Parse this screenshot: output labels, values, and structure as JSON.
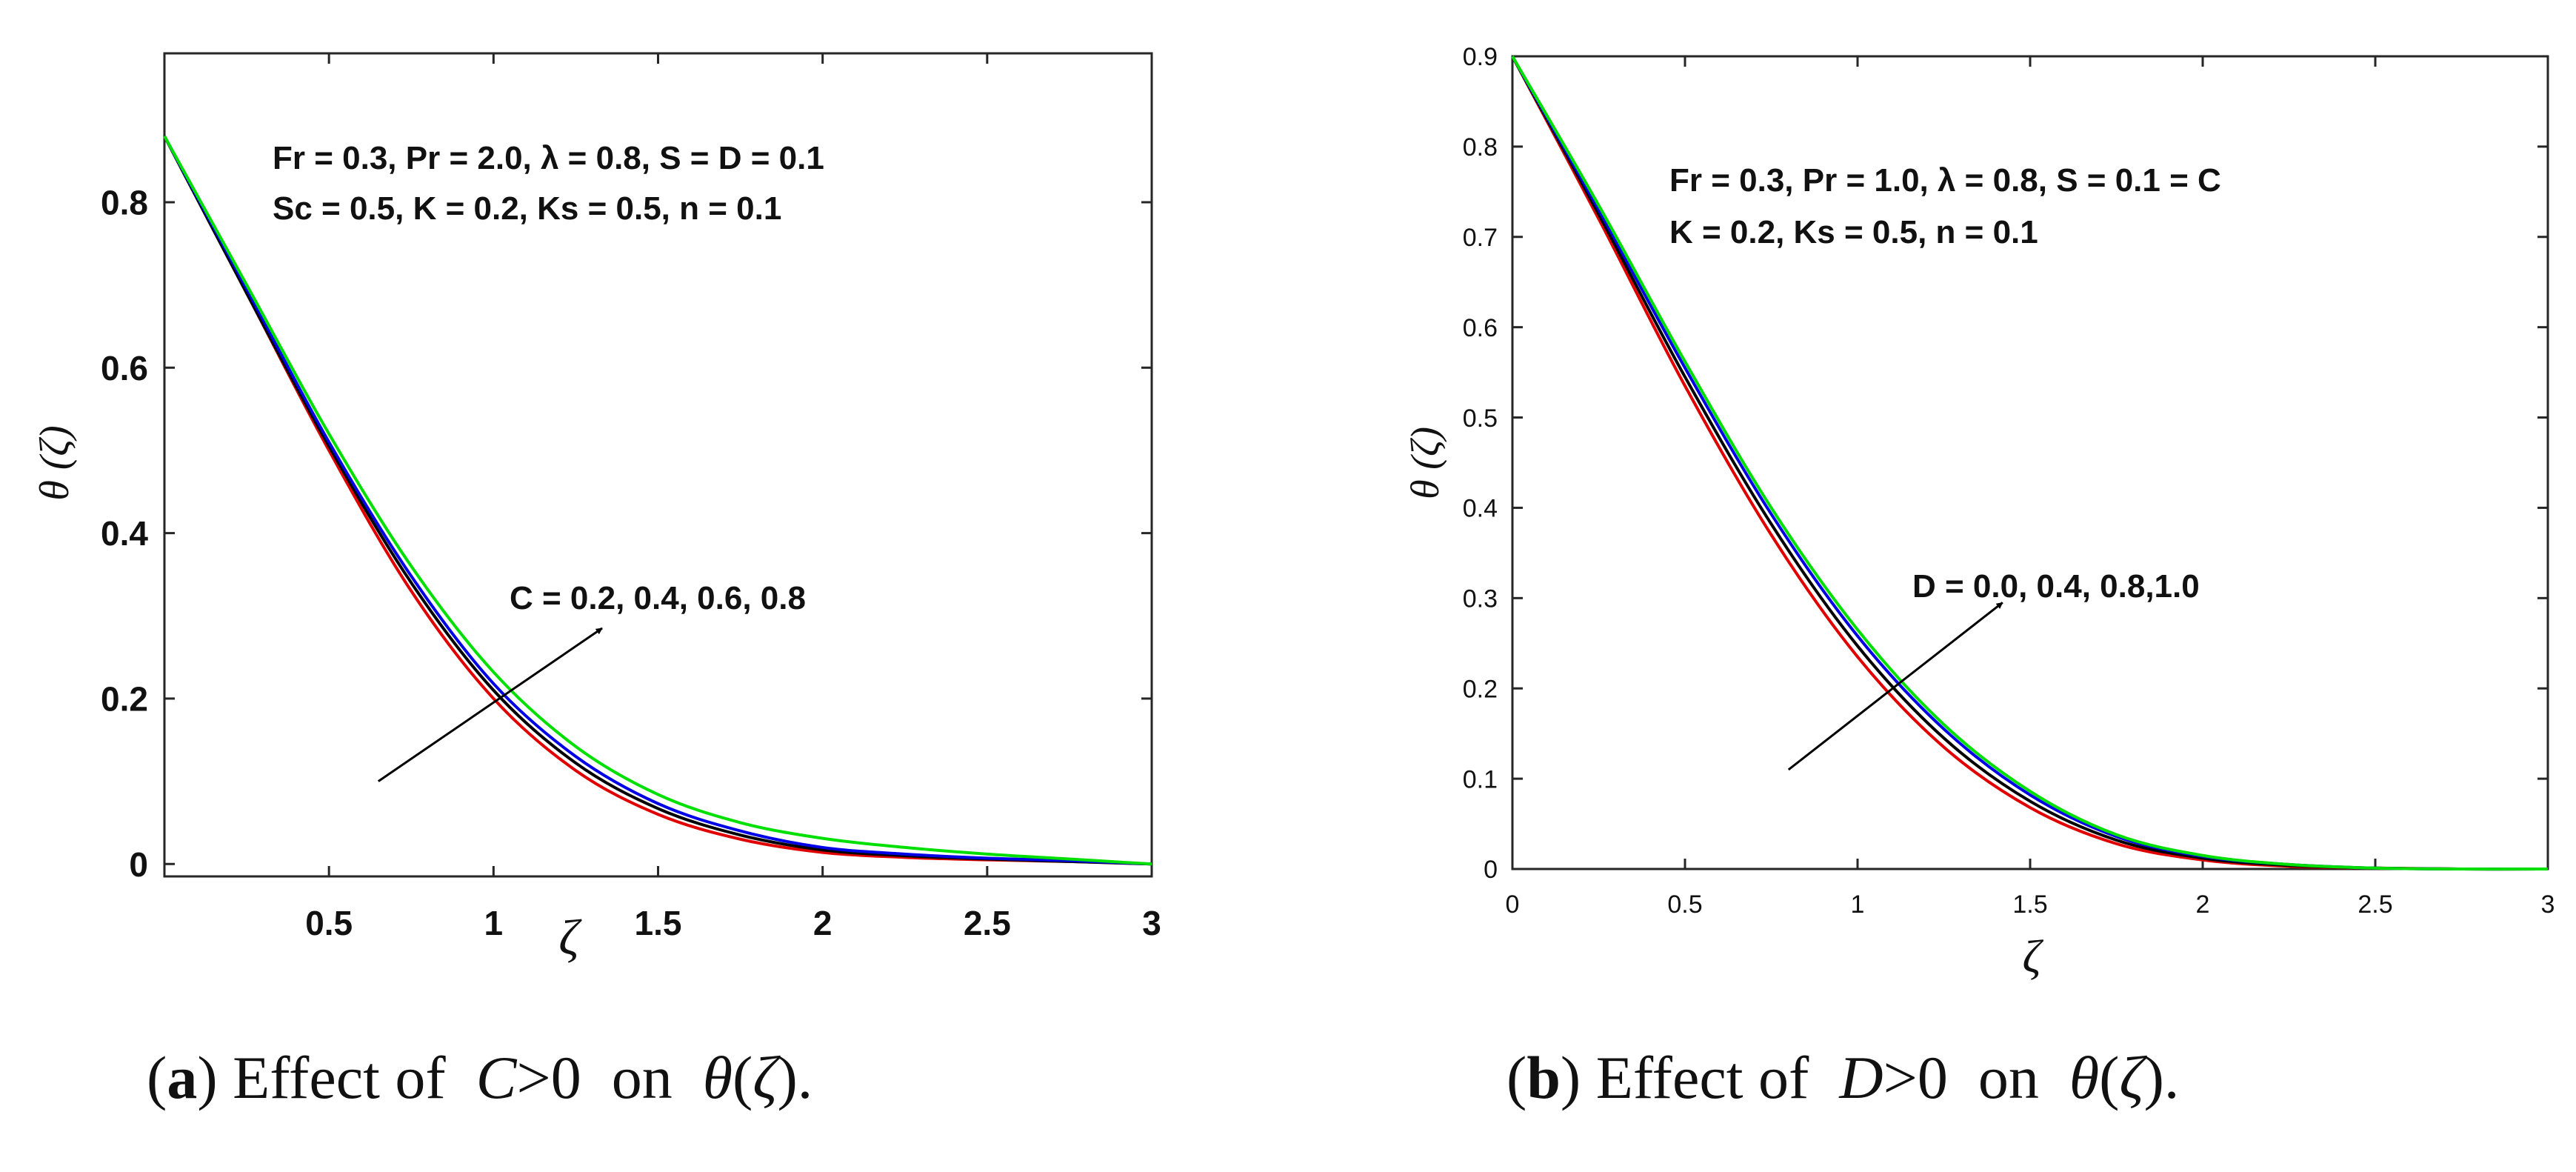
{
  "colors": {
    "red": "#e00000",
    "black": "#000000",
    "blue": "#0000e6",
    "green": "#00e000"
  },
  "chart_data": [
    {
      "type": "line",
      "panel": "a",
      "xlabel": "ζ",
      "ylabel": "θ (ζ)",
      "xlim": [
        0,
        3
      ],
      "ylim": [
        -0.015,
        0.98
      ],
      "xticks": [
        0.5,
        1,
        1.5,
        2,
        2.5,
        3
      ],
      "xtick_labels": [
        "0.5",
        "1",
        "1.5",
        "2",
        "2.5",
        "3"
      ],
      "yticks": [
        0,
        0.2,
        0.4,
        0.6,
        0.8
      ],
      "ytick_labels": [
        "0",
        "0.2",
        "0.4",
        "0.6",
        "0.8"
      ],
      "annotation_lines": [
        "Fr = 0.3, Pr = 2.0, λ = 0.8, S = D = 0.1",
        "Sc = 0.5, K = 0.2, Ks = 0.5, n = 0.1"
      ],
      "arrow_label": "C = 0.2, 0.4, 0.6, 0.8",
      "arrow": {
        "from": [
          0.65,
          0.1
        ],
        "to": [
          1.33,
          0.285
        ]
      },
      "x": [
        0,
        0.25,
        0.5,
        0.75,
        1,
        1.25,
        1.5,
        1.75,
        2,
        2.25,
        2.5,
        2.75,
        3
      ],
      "series": [
        {
          "name": "C = 0.2",
          "color": "red",
          "values": [
            0.88,
            0.69,
            0.5,
            0.33,
            0.2,
            0.113,
            0.06,
            0.03,
            0.014,
            0.008,
            0.005,
            0.003,
            0.0
          ]
        },
        {
          "name": "C = 0.4",
          "color": "black",
          "values": [
            0.88,
            0.69,
            0.505,
            0.34,
            0.21,
            0.122,
            0.067,
            0.035,
            0.017,
            0.01,
            0.006,
            0.003,
            0.0
          ]
        },
        {
          "name": "C = 0.6",
          "color": "blue",
          "values": [
            0.88,
            0.695,
            0.51,
            0.348,
            0.218,
            0.13,
            0.073,
            0.04,
            0.02,
            0.012,
            0.007,
            0.004,
            0.0
          ]
        },
        {
          "name": "C = 0.8",
          "color": "green",
          "values": [
            0.88,
            0.7,
            0.52,
            0.36,
            0.232,
            0.142,
            0.084,
            0.05,
            0.031,
            0.02,
            0.012,
            0.006,
            0.0
          ]
        }
      ]
    },
    {
      "type": "line",
      "panel": "b",
      "xlabel": "ζ",
      "ylabel": "θ (ζ)",
      "xlim": [
        0,
        3
      ],
      "ylim": [
        0,
        0.9
      ],
      "xticks": [
        0,
        0.5,
        1,
        1.5,
        2,
        2.5,
        3
      ],
      "xtick_labels": [
        "0",
        "0.5",
        "1",
        "1.5",
        "2",
        "2.5",
        "3"
      ],
      "yticks": [
        0,
        0.1,
        0.2,
        0.3,
        0.4,
        0.5,
        0.6,
        0.7,
        0.8,
        0.9
      ],
      "ytick_labels": [
        "0",
        "0.1",
        "0.2",
        "0.3",
        "0.4",
        "0.5",
        "0.6",
        "0.7",
        "0.8",
        "0.9"
      ],
      "annotation_lines": [
        "Fr = 0.3, Pr = 1.0, λ = 0.8, S = 0.1 = C",
        "K = 0.2, Ks = 0.5, n = 0.1"
      ],
      "arrow_label": "D = 0.0, 0.4, 0.8,1.0",
      "arrow": {
        "from": [
          0.8,
          0.11
        ],
        "to": [
          1.42,
          0.295
        ]
      },
      "x": [
        0,
        0.25,
        0.5,
        0.75,
        1,
        1.25,
        1.5,
        1.75,
        2,
        2.25,
        2.5,
        2.75,
        3
      ],
      "series": [
        {
          "name": "D = 0.0",
          "color": "red",
          "values": [
            0.9,
            0.72,
            0.535,
            0.37,
            0.235,
            0.135,
            0.068,
            0.028,
            0.01,
            0.003,
            0.001,
            0.0,
            0.0
          ]
        },
        {
          "name": "D = 0.4",
          "color": "black",
          "values": [
            0.9,
            0.725,
            0.545,
            0.382,
            0.247,
            0.145,
            0.075,
            0.032,
            0.012,
            0.004,
            0.001,
            0.0,
            0.0
          ]
        },
        {
          "name": "D = 0.8",
          "color": "blue",
          "values": [
            0.9,
            0.73,
            0.555,
            0.393,
            0.258,
            0.155,
            0.082,
            0.036,
            0.014,
            0.005,
            0.001,
            0.0,
            0.0
          ]
        },
        {
          "name": "D = 1.0",
          "color": "green",
          "values": [
            0.9,
            0.735,
            0.562,
            0.4,
            0.265,
            0.16,
            0.086,
            0.038,
            0.015,
            0.005,
            0.001,
            0.0,
            0.0
          ]
        }
      ]
    }
  ],
  "captions": [
    {
      "label": "a",
      "text_effect": "Effect of",
      "param": "C",
      "rel": ">",
      "value": "0",
      "on": "on",
      "func": "θ",
      "lparen": "(",
      "arg": "ζ",
      "rparen": ")",
      "end": "."
    },
    {
      "label": "b",
      "text_effect": "Effect of",
      "param": "D",
      "rel": ">",
      "value": "0",
      "on": "on",
      "func": "θ",
      "lparen": "(",
      "arg": "ζ",
      "rparen": ")",
      "end": "."
    }
  ]
}
